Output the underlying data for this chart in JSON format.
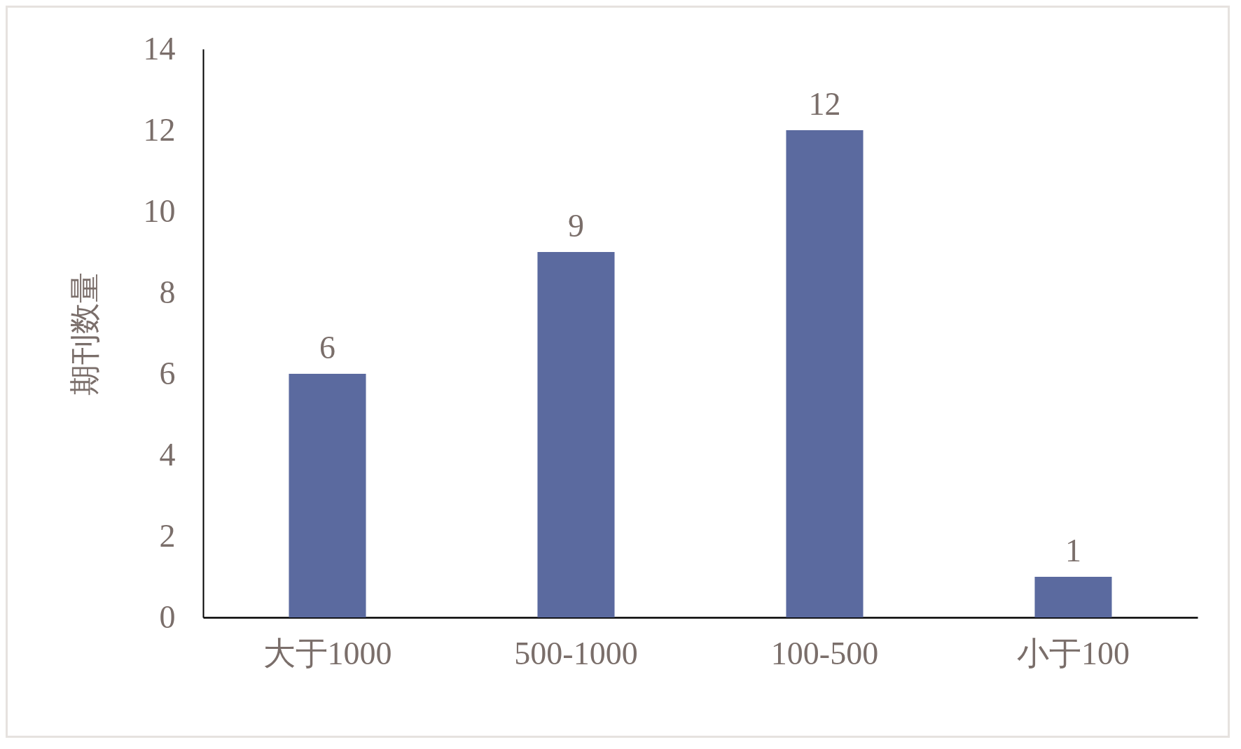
{
  "chart_data": {
    "type": "bar",
    "ylabel": "期刊数量",
    "categories": [
      "大于1000",
      "500-1000",
      "100-500",
      "小于100"
    ],
    "values": [
      6,
      9,
      12,
      1
    ],
    "color": "#5b6a9f",
    "ylim": [
      0,
      14
    ],
    "yticks": [
      0,
      2,
      4,
      6,
      8,
      10,
      12,
      14
    ],
    "data_labels": true
  }
}
